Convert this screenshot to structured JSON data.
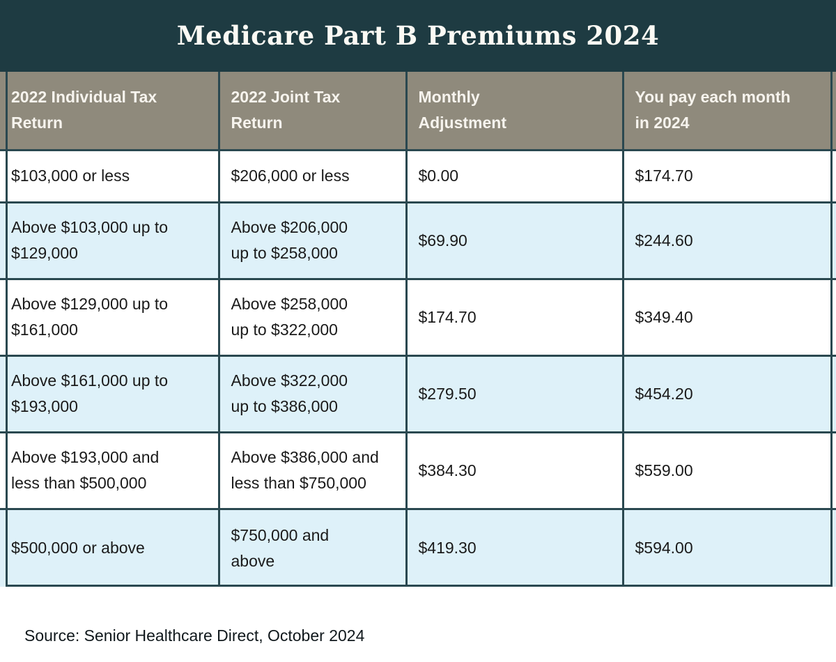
{
  "title": "Medicare Part B Premiums 2024",
  "source": "Source: Senior Healthcare Direct, October 2024",
  "colors": {
    "banner_bg": "#1e3b42",
    "header_bg": "#8f8a7c",
    "alt_row_bg": "#def1f9",
    "row_bg": "#ffffff",
    "border": "#2a4850",
    "header_text": "#f7f4ee",
    "cell_text": "#1a1a1a"
  },
  "display": {
    "headers": [
      "2022 Individual Tax\nReturn",
      "2022 Joint Tax\nReturn",
      "Monthly\nAdjustment",
      "You pay each month\nin 2024"
    ],
    "rows": [
      [
        "$103,000 or less",
        "$206,000 or less",
        "$0.00",
        "$174.70"
      ],
      [
        "Above $103,000 up to\n$129,000",
        "Above $206,000\nup to $258,000",
        "$69.90",
        "$244.60"
      ],
      [
        "Above $129,000 up to\n$161,000",
        "Above $258,000\nup to $322,000",
        "$174.70",
        "$349.40"
      ],
      [
        "Above $161,000 up to\n$193,000",
        "Above $322,000\nup to $386,000",
        "$279.50",
        "$454.20"
      ],
      [
        "Above $193,000 and\nless than $500,000",
        "Above $386,000 and\nless than $750,000",
        "$384.30",
        "$559.00"
      ],
      [
        "$500,000 or above",
        "$750,000 and\nabove",
        "$419.30",
        "$594.00"
      ]
    ]
  },
  "chart_data": {
    "type": "table",
    "title": "Medicare Part B Premiums 2024",
    "columns": [
      "2022 Individual Tax Return",
      "2022 Joint Tax Return",
      "Monthly Adjustment",
      "You pay each month in 2024"
    ],
    "rows": [
      [
        "$103,000 or less",
        "$206,000 or less",
        "$0.00",
        "$174.70"
      ],
      [
        "Above $103,000 up to $129,000",
        "Above $206,000 up to $258,000",
        "$69.90",
        "$244.60"
      ],
      [
        "Above $129,000 up to $161,000",
        "Above $258,000 up to $322,000",
        "$174.70",
        "$349.40"
      ],
      [
        "Above $161,000 up to $193,000",
        "Above $322,000 up to $386,000",
        "$279.50",
        "$454.20"
      ],
      [
        "Above $193,000 and less than $500,000",
        "Above $386,000 and less than $750,000",
        "$384.30",
        "$559.00"
      ],
      [
        "$500,000 or above",
        "$750,000 and above",
        "$419.30",
        "$594.00"
      ]
    ],
    "monthly_adjustment_values": [
      0.0,
      69.9,
      174.7,
      279.5,
      384.3,
      419.3
    ],
    "monthly_payment_values": [
      174.7,
      244.6,
      349.4,
      454.2,
      559.0,
      594.0
    ],
    "source": "Source: Senior Healthcare Direct, October 2024"
  }
}
